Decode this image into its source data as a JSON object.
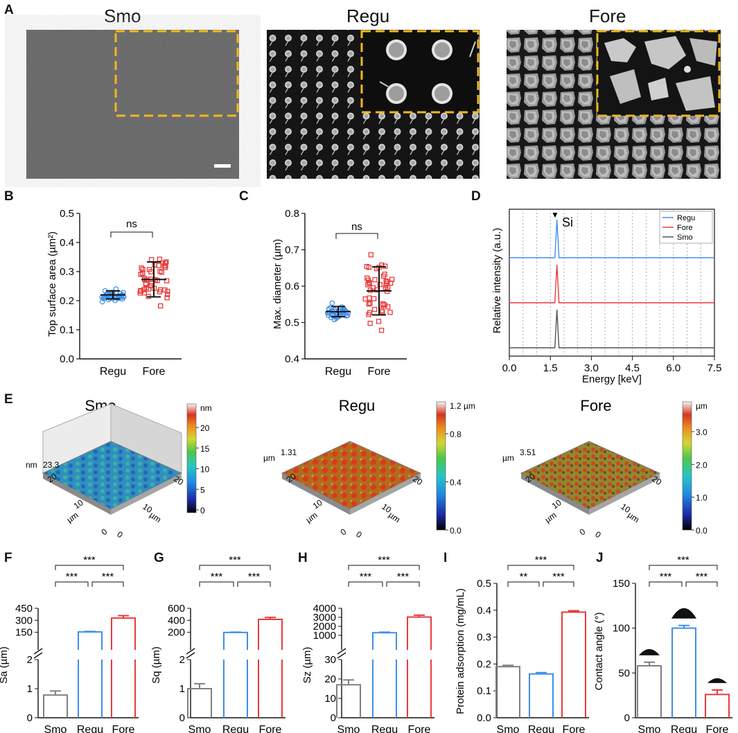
{
  "panel_letters": {
    "A": "A",
    "B": "B",
    "C": "C",
    "D": "D",
    "E": "E",
    "F": "F",
    "G": "G",
    "H": "H",
    "I": "I",
    "J": "J"
  },
  "sem": {
    "smo_title": "Smo",
    "regu_title": "Regu",
    "fore_title": "Fore"
  },
  "colors": {
    "smo": "#7f7f7f",
    "regu": "#3d8fe8",
    "fore": "#e83a3a",
    "inset_border": "#f2b81b"
  },
  "chart_data": [
    {
      "id": "B",
      "type": "scatter",
      "ylabel": "Top surface area (µm²)",
      "ylim": [
        0,
        0.5
      ],
      "yticks": [
        "0.0",
        "0.1",
        "0.2",
        "0.3",
        "0.4",
        "0.5"
      ],
      "categories": [
        "Regu",
        "Fore"
      ],
      "mean": [
        0.22,
        0.273
      ],
      "sd": [
        0.014,
        0.06
      ],
      "sig": "ns"
    },
    {
      "id": "C",
      "type": "scatter",
      "ylabel": "Max. diameter (µm)",
      "ylim": [
        0.4,
        0.8
      ],
      "yticks": [
        "0.4",
        "0.5",
        "0.6",
        "0.7",
        "0.8"
      ],
      "categories": [
        "Regu",
        "Fore"
      ],
      "mean": [
        0.53,
        0.587
      ],
      "sd": [
        0.014,
        0.066
      ],
      "sig": "ns"
    },
    {
      "id": "D",
      "type": "line",
      "xlabel": "Energy [keV]",
      "ylabel": "Relative intensity (a.u.)",
      "xlim": [
        0,
        7.5
      ],
      "xticks": [
        "0.0",
        "1.5",
        "3.0",
        "4.5",
        "6.0",
        "7.5"
      ],
      "peak_x": 1.74,
      "peak_label": "Si",
      "legend": [
        "Regu",
        "Fore",
        "Smo"
      ]
    },
    {
      "id": "F",
      "type": "bar",
      "ylabel": "Sa (µm)",
      "categories": [
        "Smo",
        "Regu",
        "Fore"
      ],
      "values": [
        0.78,
        155,
        328
      ],
      "err": [
        0.14,
        6,
        30
      ],
      "upper_ticks": [
        "150",
        "300",
        "450"
      ],
      "lower_ticks": [
        "0",
        "1",
        "2"
      ],
      "sig": [
        "***",
        "***",
        "***"
      ]
    },
    {
      "id": "G",
      "type": "bar",
      "ylabel": "Sq (µm)",
      "categories": [
        "Smo",
        "Regu",
        "Fore"
      ],
      "values": [
        1.0,
        197,
        415
      ],
      "err": [
        0.17,
        6,
        33
      ],
      "upper_ticks": [
        "200",
        "400",
        "600"
      ],
      "lower_ticks": [
        "0",
        "1",
        "2"
      ],
      "sig": [
        "***",
        "***",
        "***"
      ]
    },
    {
      "id": "H",
      "type": "bar",
      "ylabel": "Sz (µm)",
      "categories": [
        "Smo",
        "Regu",
        "Fore"
      ],
      "values": [
        17,
        1290,
        3030
      ],
      "err": [
        2.5,
        60,
        210
      ],
      "upper_ticks": [
        "1000",
        "2000",
        "3000",
        "4000"
      ],
      "lower_ticks": [
        "0",
        "10",
        "20",
        "30"
      ],
      "sig": [
        "***",
        "***",
        "***"
      ]
    },
    {
      "id": "I",
      "type": "bar",
      "ylabel": "Protein adsorption (mg/mL)",
      "categories": [
        "Smo",
        "Regu",
        "Fore"
      ],
      "values": [
        0.19,
        0.163,
        0.393
      ],
      "err": [
        0.005,
        0.005,
        0.005
      ],
      "ylim": [
        0,
        0.5
      ],
      "yticks": [
        "0.0",
        "0.1",
        "0.2",
        "0.3",
        "0.4",
        "0.5"
      ],
      "sig": [
        "**",
        "***",
        "***"
      ]
    },
    {
      "id": "J",
      "type": "bar",
      "ylabel": "Contact angle (°)",
      "categories": [
        "Smo",
        "Regu",
        "Fore"
      ],
      "values": [
        58,
        100,
        26
      ],
      "err": [
        4,
        3,
        5
      ],
      "ylim": [
        0,
        150
      ],
      "yticks": [
        "0",
        "50",
        "100",
        "150"
      ],
      "sig": [
        "***",
        "***",
        "***"
      ]
    }
  ],
  "afm": [
    {
      "title": "Smo",
      "zmax_unit": "nm",
      "zmax": "23.3",
      "cbar_unit": "nm",
      "cbar_ticks": [
        "20",
        "15",
        "10",
        "5",
        "0"
      ],
      "axis_ticks": [
        "20",
        "10",
        "0"
      ],
      "axis_unit": "µm"
    },
    {
      "title": "Regu",
      "zmax_unit": "µm",
      "zmax": "1.31",
      "cbar_unit": "1.2 µm",
      "cbar_ticks": [
        "0.8",
        "0.4",
        "0.0"
      ],
      "axis_ticks": [
        "20",
        "10",
        "0"
      ],
      "axis_unit": "µm"
    },
    {
      "title": "Fore",
      "zmax_unit": "µm",
      "zmax": "3.51",
      "cbar_unit": "µm",
      "cbar_ticks": [
        "3.0",
        "2.0",
        "1.0",
        "0.0"
      ],
      "axis_ticks": [
        "20",
        "10",
        "0"
      ],
      "axis_unit": "µm"
    }
  ],
  "text": {
    "ns": "ns",
    "regu": "Regu",
    "fore": "Fore",
    "smo": "Smo",
    "si": "Si",
    "peak_marker": "▼",
    "b_ylabel": "Top surface area (µm²)",
    "c_ylabel": "Max. diameter (µm)",
    "d_ylabel": "Relative intensity (a.u.)",
    "d_xlabel": "Energy [keV]"
  }
}
